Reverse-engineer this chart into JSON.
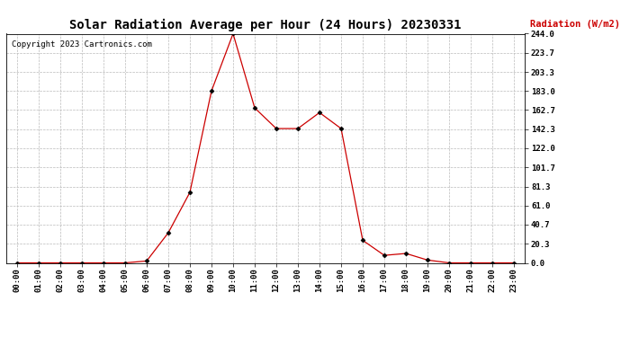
{
  "title": "Solar Radiation Average per Hour (24 Hours) 20230331",
  "copyright": "Copyright 2023 Cartronics.com",
  "ylabel": "Radiation (W/m2)",
  "hours": [
    "00:00",
    "01:00",
    "02:00",
    "03:00",
    "04:00",
    "05:00",
    "06:00",
    "07:00",
    "08:00",
    "09:00",
    "10:00",
    "11:00",
    "12:00",
    "13:00",
    "14:00",
    "15:00",
    "16:00",
    "17:00",
    "18:00",
    "19:00",
    "20:00",
    "21:00",
    "22:00",
    "23:00"
  ],
  "values": [
    0.0,
    0.0,
    0.0,
    0.0,
    0.0,
    0.0,
    2.0,
    32.0,
    75.0,
    183.0,
    244.0,
    165.0,
    143.0,
    143.0,
    160.0,
    143.0,
    24.0,
    8.0,
    10.0,
    3.0,
    0.0,
    0.0,
    0.0,
    0.0
  ],
  "line_color": "#cc0000",
  "marker_color": "#000000",
  "ylabel_color": "#cc0000",
  "copyright_color": "#000000",
  "title_color": "#000000",
  "background_color": "#ffffff",
  "grid_color": "#bbbbbb",
  "ylim": [
    0.0,
    244.0
  ],
  "yticks": [
    0.0,
    20.3,
    40.7,
    61.0,
    81.3,
    101.7,
    122.0,
    142.3,
    162.7,
    183.0,
    203.3,
    223.7,
    244.0
  ],
  "title_fontsize": 10,
  "tick_fontsize": 6.5,
  "copyright_fontsize": 6.5,
  "ylabel_fontsize": 7.5
}
